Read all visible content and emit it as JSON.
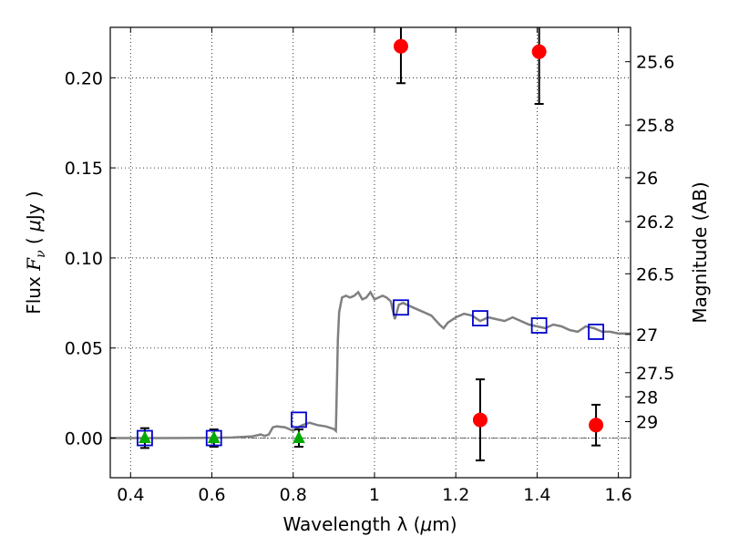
{
  "chart_data": {
    "type": "scatter",
    "xlabel_prefix": "Wavelength  λ (",
    "xlabel_mu": "μ",
    "xlabel_suffix": "m)",
    "ylabel_prefix": "Flux  ",
    "ylabel_F": "F",
    "ylabel_nu": "ν",
    "ylabel_mid": "  ( ",
    "ylabel_mu": "μ",
    "ylabel_suffix": "Jy )",
    "y2label": "Magnitude (AB)",
    "xlim": [
      0.35,
      1.63
    ],
    "ylim": [
      -0.022,
      0.228
    ],
    "grid": true,
    "x_ticks": [
      {
        "value": 0.4,
        "label": "0.4"
      },
      {
        "value": 0.6,
        "label": "0.6"
      },
      {
        "value": 0.8,
        "label": "0.8"
      },
      {
        "value": 1.0,
        "label": "1"
      },
      {
        "value": 1.2,
        "label": "1.2"
      },
      {
        "value": 1.4,
        "label": "1.4"
      },
      {
        "value": 1.6,
        "label": "1.6"
      }
    ],
    "y_ticks": [
      {
        "value": 0.0,
        "label": "0.00"
      },
      {
        "value": 0.05,
        "label": "0.05"
      },
      {
        "value": 0.1,
        "label": "0.10"
      },
      {
        "value": 0.15,
        "label": "0.15"
      },
      {
        "value": 0.2,
        "label": "0.20"
      }
    ],
    "mag_ticks": [
      {
        "value": 25.6,
        "label": "25.6"
      },
      {
        "value": 25.8,
        "label": "25.8"
      },
      {
        "value": 26.0,
        "label": "26"
      },
      {
        "value": 26.2,
        "label": "26.2"
      },
      {
        "value": 26.5,
        "label": "26.5"
      },
      {
        "value": 27.0,
        "label": "27"
      },
      {
        "value": 27.5,
        "label": "27.5"
      },
      {
        "value": 28.0,
        "label": "28"
      },
      {
        "value": 29.0,
        "label": "29"
      }
    ],
    "colors": {
      "model": "#808080",
      "observed": "#ff0000",
      "model_bands": "#0000cc",
      "upper_limits": "#00aa00",
      "errorbar": "#000000",
      "grid": "#000000"
    },
    "model_spectrum": {
      "x": [
        0.35,
        0.5,
        0.6,
        0.65,
        0.7,
        0.72,
        0.73,
        0.74,
        0.75,
        0.76,
        0.78,
        0.8,
        0.82,
        0.84,
        0.86,
        0.88,
        0.9,
        0.905,
        0.91,
        0.913,
        0.92,
        0.93,
        0.94,
        0.95,
        0.96,
        0.97,
        0.98,
        0.99,
        1.0,
        1.01,
        1.02,
        1.03,
        1.04,
        1.05,
        1.06,
        1.07,
        1.08,
        1.09,
        1.1,
        1.12,
        1.14,
        1.16,
        1.17,
        1.18,
        1.2,
        1.22,
        1.24,
        1.26,
        1.28,
        1.3,
        1.32,
        1.34,
        1.36,
        1.38,
        1.4,
        1.42,
        1.44,
        1.46,
        1.48,
        1.5,
        1.52,
        1.54,
        1.56,
        1.58,
        1.6,
        1.63
      ],
      "y": [
        0.0,
        0.0,
        0.0001,
        0.0003,
        0.001,
        0.002,
        0.0012,
        0.002,
        0.006,
        0.0065,
        0.006,
        0.004,
        0.007,
        0.0085,
        0.0072,
        0.0065,
        0.005,
        0.004,
        0.055,
        0.07,
        0.078,
        0.079,
        0.078,
        0.079,
        0.081,
        0.077,
        0.078,
        0.081,
        0.077,
        0.078,
        0.079,
        0.078,
        0.076,
        0.066,
        0.074,
        0.075,
        0.074,
        0.073,
        0.072,
        0.07,
        0.068,
        0.063,
        0.061,
        0.064,
        0.067,
        0.069,
        0.068,
        0.065,
        0.067,
        0.066,
        0.065,
        0.067,
        0.065,
        0.063,
        0.062,
        0.061,
        0.063,
        0.062,
        0.06,
        0.059,
        0.062,
        0.061,
        0.059,
        0.059,
        0.058,
        0.058
      ]
    },
    "observed": [
      {
        "x": 1.065,
        "y": 0.2175,
        "err": 0.0205
      },
      {
        "x": 1.26,
        "y": 0.0101,
        "err": 0.0225
      },
      {
        "x": 1.405,
        "y": 0.2145,
        "err": 0.029
      },
      {
        "x": 1.545,
        "y": 0.0072,
        "err": 0.0113
      }
    ],
    "model_bands": [
      {
        "x": 0.435,
        "y": 0.0
      },
      {
        "x": 0.605,
        "y": 0.0
      },
      {
        "x": 0.814,
        "y": 0.0102
      },
      {
        "x": 1.065,
        "y": 0.0725
      },
      {
        "x": 1.26,
        "y": 0.0665
      },
      {
        "x": 1.405,
        "y": 0.0625
      },
      {
        "x": 1.545,
        "y": 0.059
      }
    ],
    "upper_limits": [
      {
        "x": 0.435,
        "y": 0.0,
        "err": 0.0055
      },
      {
        "x": 0.605,
        "y": 0.0,
        "err": 0.0048
      },
      {
        "x": 0.814,
        "y": 0.0,
        "err": 0.0048
      }
    ]
  }
}
